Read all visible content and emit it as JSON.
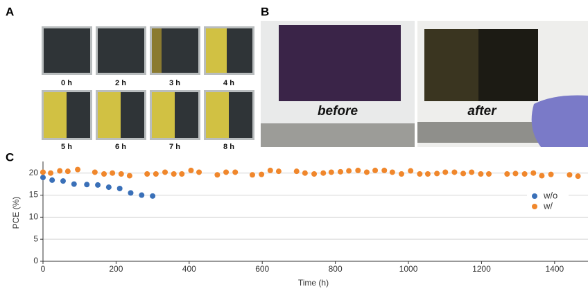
{
  "figure": {
    "panel_labels": [
      "A",
      "B",
      "C"
    ],
    "samples": [
      "0 h",
      "2 h",
      "3 h",
      "4 h",
      "5 h",
      "6 h",
      "7 h",
      "8 h"
    ],
    "photos": [
      "before",
      "after"
    ]
  },
  "chart_data": {
    "type": "scatter",
    "x_label": "Time (h)",
    "y_label": "PCE (%)",
    "xlim": [
      0,
      1480
    ],
    "ylim": [
      0,
      22
    ],
    "xticks": [
      0,
      200,
      400,
      600,
      800,
      1000,
      1200,
      1400
    ],
    "yticks": [
      0,
      5,
      10,
      15,
      20
    ],
    "grid": true,
    "legend": "right",
    "series": [
      {
        "name": "w/o",
        "color": "#3a70b8",
        "x": [
          0,
          25,
          55,
          85,
          120,
          150,
          180,
          210,
          240,
          270,
          300
        ],
        "values": [
          19.0,
          18.4,
          18.2,
          17.5,
          17.4,
          17.3,
          16.8,
          16.5,
          15.5,
          15.0,
          14.8
        ]
      },
      {
        "name": "w/",
        "color": "#f0872c",
        "x": [
          0,
          21,
          46,
          68,
          95,
          142,
          167,
          190,
          214,
          237,
          285,
          309,
          334,
          358,
          380,
          405,
          427,
          477,
          501,
          526,
          573,
          598,
          622,
          645,
          694,
          717,
          742,
          767,
          789,
          814,
          837,
          862,
          886,
          909,
          934,
          956,
          981,
          1006,
          1031,
          1053,
          1078,
          1101,
          1126,
          1150,
          1173,
          1198,
          1220,
          1270,
          1293,
          1318,
          1342,
          1365,
          1390,
          1441,
          1464
        ],
        "values": [
          20.2,
          20.0,
          20.5,
          20.4,
          20.8,
          20.2,
          19.8,
          20.0,
          19.8,
          19.4,
          19.8,
          19.8,
          20.2,
          19.8,
          19.8,
          20.6,
          20.2,
          19.6,
          20.2,
          20.2,
          19.6,
          19.7,
          20.6,
          20.4,
          20.4,
          20.0,
          19.8,
          20.0,
          20.2,
          20.3,
          20.5,
          20.6,
          20.2,
          20.6,
          20.6,
          20.2,
          19.8,
          20.5,
          19.8,
          19.8,
          19.9,
          20.2,
          20.2,
          19.9,
          20.2,
          19.8,
          19.8,
          19.8,
          19.9,
          19.8,
          20.0,
          19.4,
          19.7,
          19.6,
          19.3
        ]
      }
    ]
  }
}
